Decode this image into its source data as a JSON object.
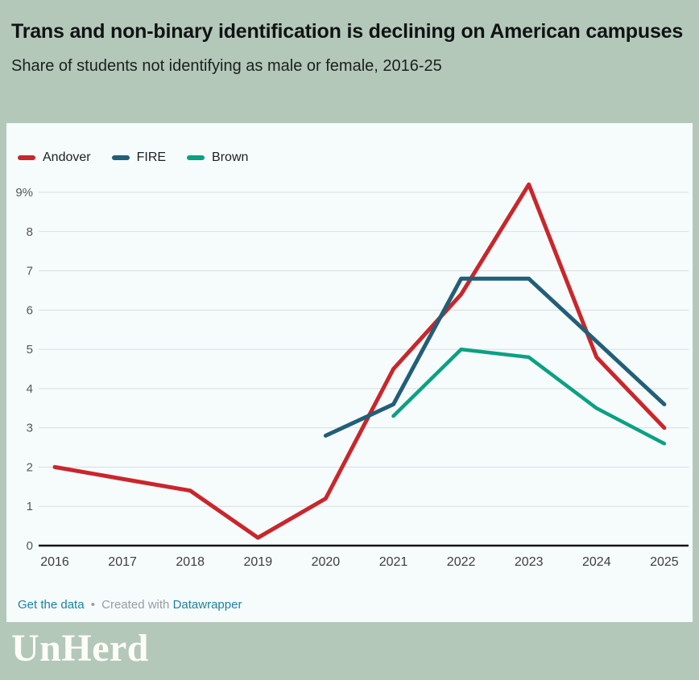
{
  "header": {
    "title": "Trans and non-binary identification is declining on American campuses",
    "subtitle": "Share of students not identifying as male or female, 2016-25"
  },
  "legend": [
    {
      "label": "Andover",
      "color": "#c9262b"
    },
    {
      "label": "FIRE",
      "color": "#235e78"
    },
    {
      "label": "Brown",
      "color": "#0aa183"
    }
  ],
  "chart_data": {
    "type": "line",
    "title": "Trans and non-binary identification is declining on American campuses",
    "subtitle": "Share of students not identifying as male or female, 2016-25",
    "x": [
      2016,
      2017,
      2018,
      2019,
      2020,
      2021,
      2022,
      2023,
      2024,
      2025
    ],
    "series": [
      {
        "name": "Andover",
        "color": "#c9262b",
        "stroke_width": 5,
        "values": [
          2.0,
          1.7,
          1.4,
          0.2,
          1.2,
          4.5,
          6.4,
          9.2,
          4.8,
          3.0
        ]
      },
      {
        "name": "FIRE",
        "color": "#235e78",
        "stroke_width": 5,
        "values": [
          null,
          null,
          null,
          null,
          2.8,
          3.6,
          6.8,
          6.8,
          5.2,
          3.6
        ]
      },
      {
        "name": "Brown",
        "color": "#0aa183",
        "stroke_width": 4.5,
        "values": [
          null,
          null,
          null,
          null,
          null,
          3.3,
          5.0,
          4.8,
          3.5,
          2.6
        ]
      }
    ],
    "xlabel": "",
    "ylabel": "",
    "ylim": [
      0,
      9
    ],
    "y_ticks": [
      "0",
      "1",
      "2",
      "3",
      "4",
      "5",
      "6",
      "7",
      "8",
      "9%"
    ],
    "grid": true,
    "legend_position": "top-left"
  },
  "footer": {
    "get_data_label": "Get the data",
    "separator": "•",
    "created_with": "Created with",
    "datawrapper_label": "Datawrapper"
  },
  "logo": {
    "text": "UnHerd"
  },
  "colors": {
    "page_background": "#b3c8b9",
    "card_background": "#f6fbfc",
    "gridline": "#d9dddf",
    "axis_line": "#141414",
    "y_tick_text": "#565656",
    "x_tick_text": "#3e3e3e",
    "link": "#1d81a2",
    "muted_text": "#979ea1"
  }
}
